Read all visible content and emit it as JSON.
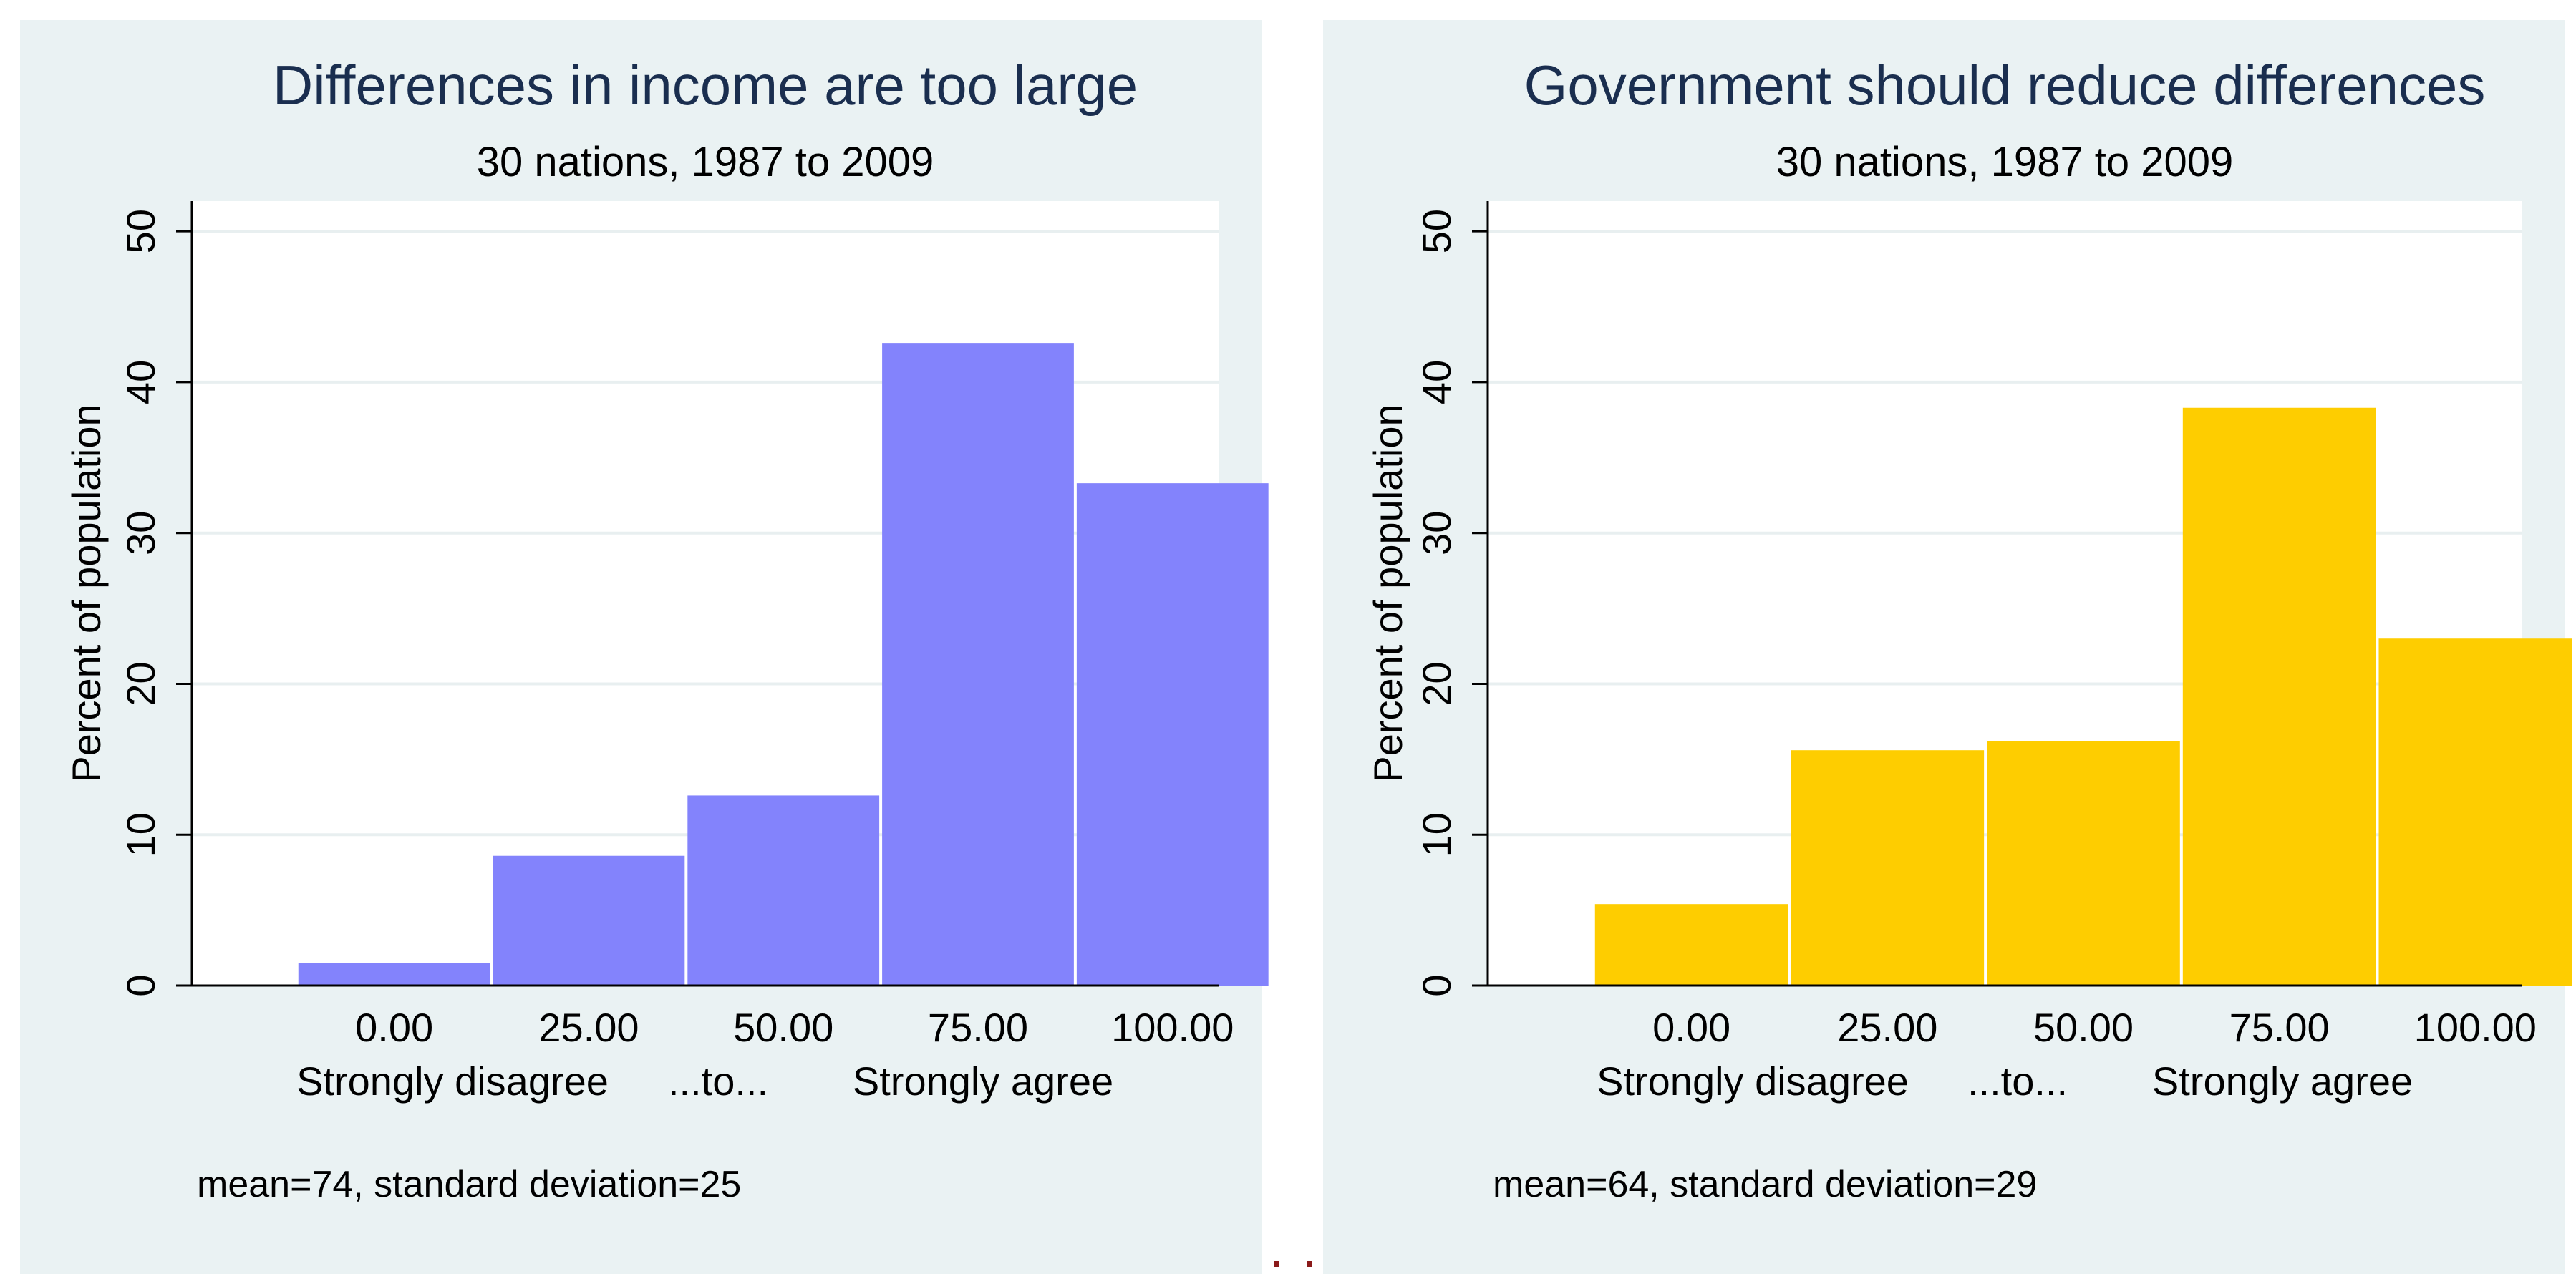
{
  "chart_data": [
    {
      "type": "bar",
      "title": "Differences in income are too large",
      "subtitle": "30 nations, 1987 to 2009",
      "xlabel": "",
      "ylabel": "Percent of population",
      "categories": [
        "0.00",
        "25.00",
        "50.00",
        "75.00",
        "100.00"
      ],
      "x": [
        0,
        25,
        50,
        75,
        100
      ],
      "values": [
        1.5,
        8.6,
        12.6,
        42.6,
        33.3
      ],
      "ylim": [
        0,
        52
      ],
      "xlim": [
        -26,
        106
      ],
      "yticks": [
        "0",
        "10",
        "20",
        "30",
        "40",
        "50"
      ],
      "ytick_values": [
        0,
        10,
        20,
        30,
        40,
        50
      ],
      "scale_labels": [
        "Strongly disagree",
        "...to...",
        "Strongly agree"
      ],
      "note": "mean=74, standard deviation=25",
      "bar_color": "#8383fc",
      "grid": true
    },
    {
      "type": "bar",
      "title": "Government should reduce differences",
      "subtitle": "30 nations, 1987 to 2009",
      "xlabel": "",
      "ylabel": "Percent of population",
      "categories": [
        "0.00",
        "25.00",
        "50.00",
        "75.00",
        "100.00"
      ],
      "x": [
        0,
        25,
        50,
        75,
        100
      ],
      "values": [
        5.4,
        15.6,
        16.2,
        38.3,
        23.0
      ],
      "ylim": [
        0,
        52
      ],
      "xlim": [
        -26,
        106
      ],
      "yticks": [
        "0",
        "10",
        "20",
        "30",
        "40",
        "50"
      ],
      "ytick_values": [
        0,
        10,
        20,
        30,
        40,
        50
      ],
      "scale_labels": [
        "Strongly disagree",
        "...to...",
        "Strongly agree"
      ],
      "note": "mean=64, standard deviation=29",
      "bar_color": "#fecd00",
      "grid": true
    }
  ],
  "colors": {
    "panel_background": "#eaf2f3",
    "plot_background": "#ffffff",
    "gridline": "#e8eff0",
    "title_color": "#1a2e4f",
    "text_color": "#000000",
    "separator_dots": "#8b1a1a"
  }
}
